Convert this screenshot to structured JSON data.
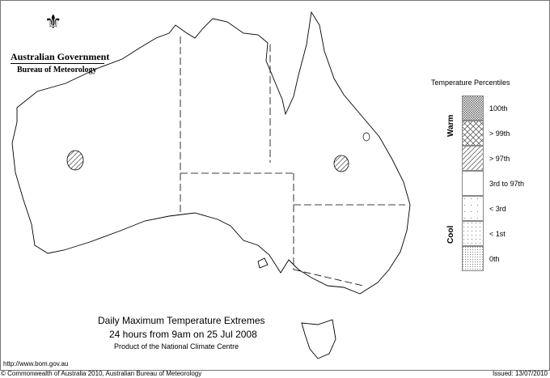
{
  "logo": {
    "line1": "Australian Government",
    "line2": "Bureau of Meteorology"
  },
  "title": "Daily Maximum Temperature Extremes",
  "subtitle": "24 hours from 9am on 25 Jul 2008",
  "product": "Product of the National Climate Centre",
  "url": "http://www.bom.gov.au",
  "copyright": "© Commonwealth of Australia 2010, Australian Bureau of Meteorology",
  "issued": "Issued: 13/07/2010",
  "legend": {
    "title": "Temperature Percentiles",
    "warm": "Warm",
    "cool": "Cool",
    "classes": [
      {
        "label": "100th",
        "pattern": "dense-crosshatch"
      },
      {
        "label": "> 99th",
        "pattern": "crosshatch"
      },
      {
        "label": "> 97th",
        "pattern": "diagonal"
      },
      {
        "label": "3rd to 97th",
        "pattern": "none"
      },
      {
        "label": "< 3rd",
        "pattern": "sparse-dots"
      },
      {
        "label": "< 1st",
        "pattern": "dots"
      },
      {
        "label": "0th",
        "pattern": "dense-dots"
      }
    ]
  },
  "regions": [
    {
      "area": "central Western Australia",
      "class": "> 97th"
    },
    {
      "area": "central Queensland",
      "class": "> 97th"
    }
  ]
}
